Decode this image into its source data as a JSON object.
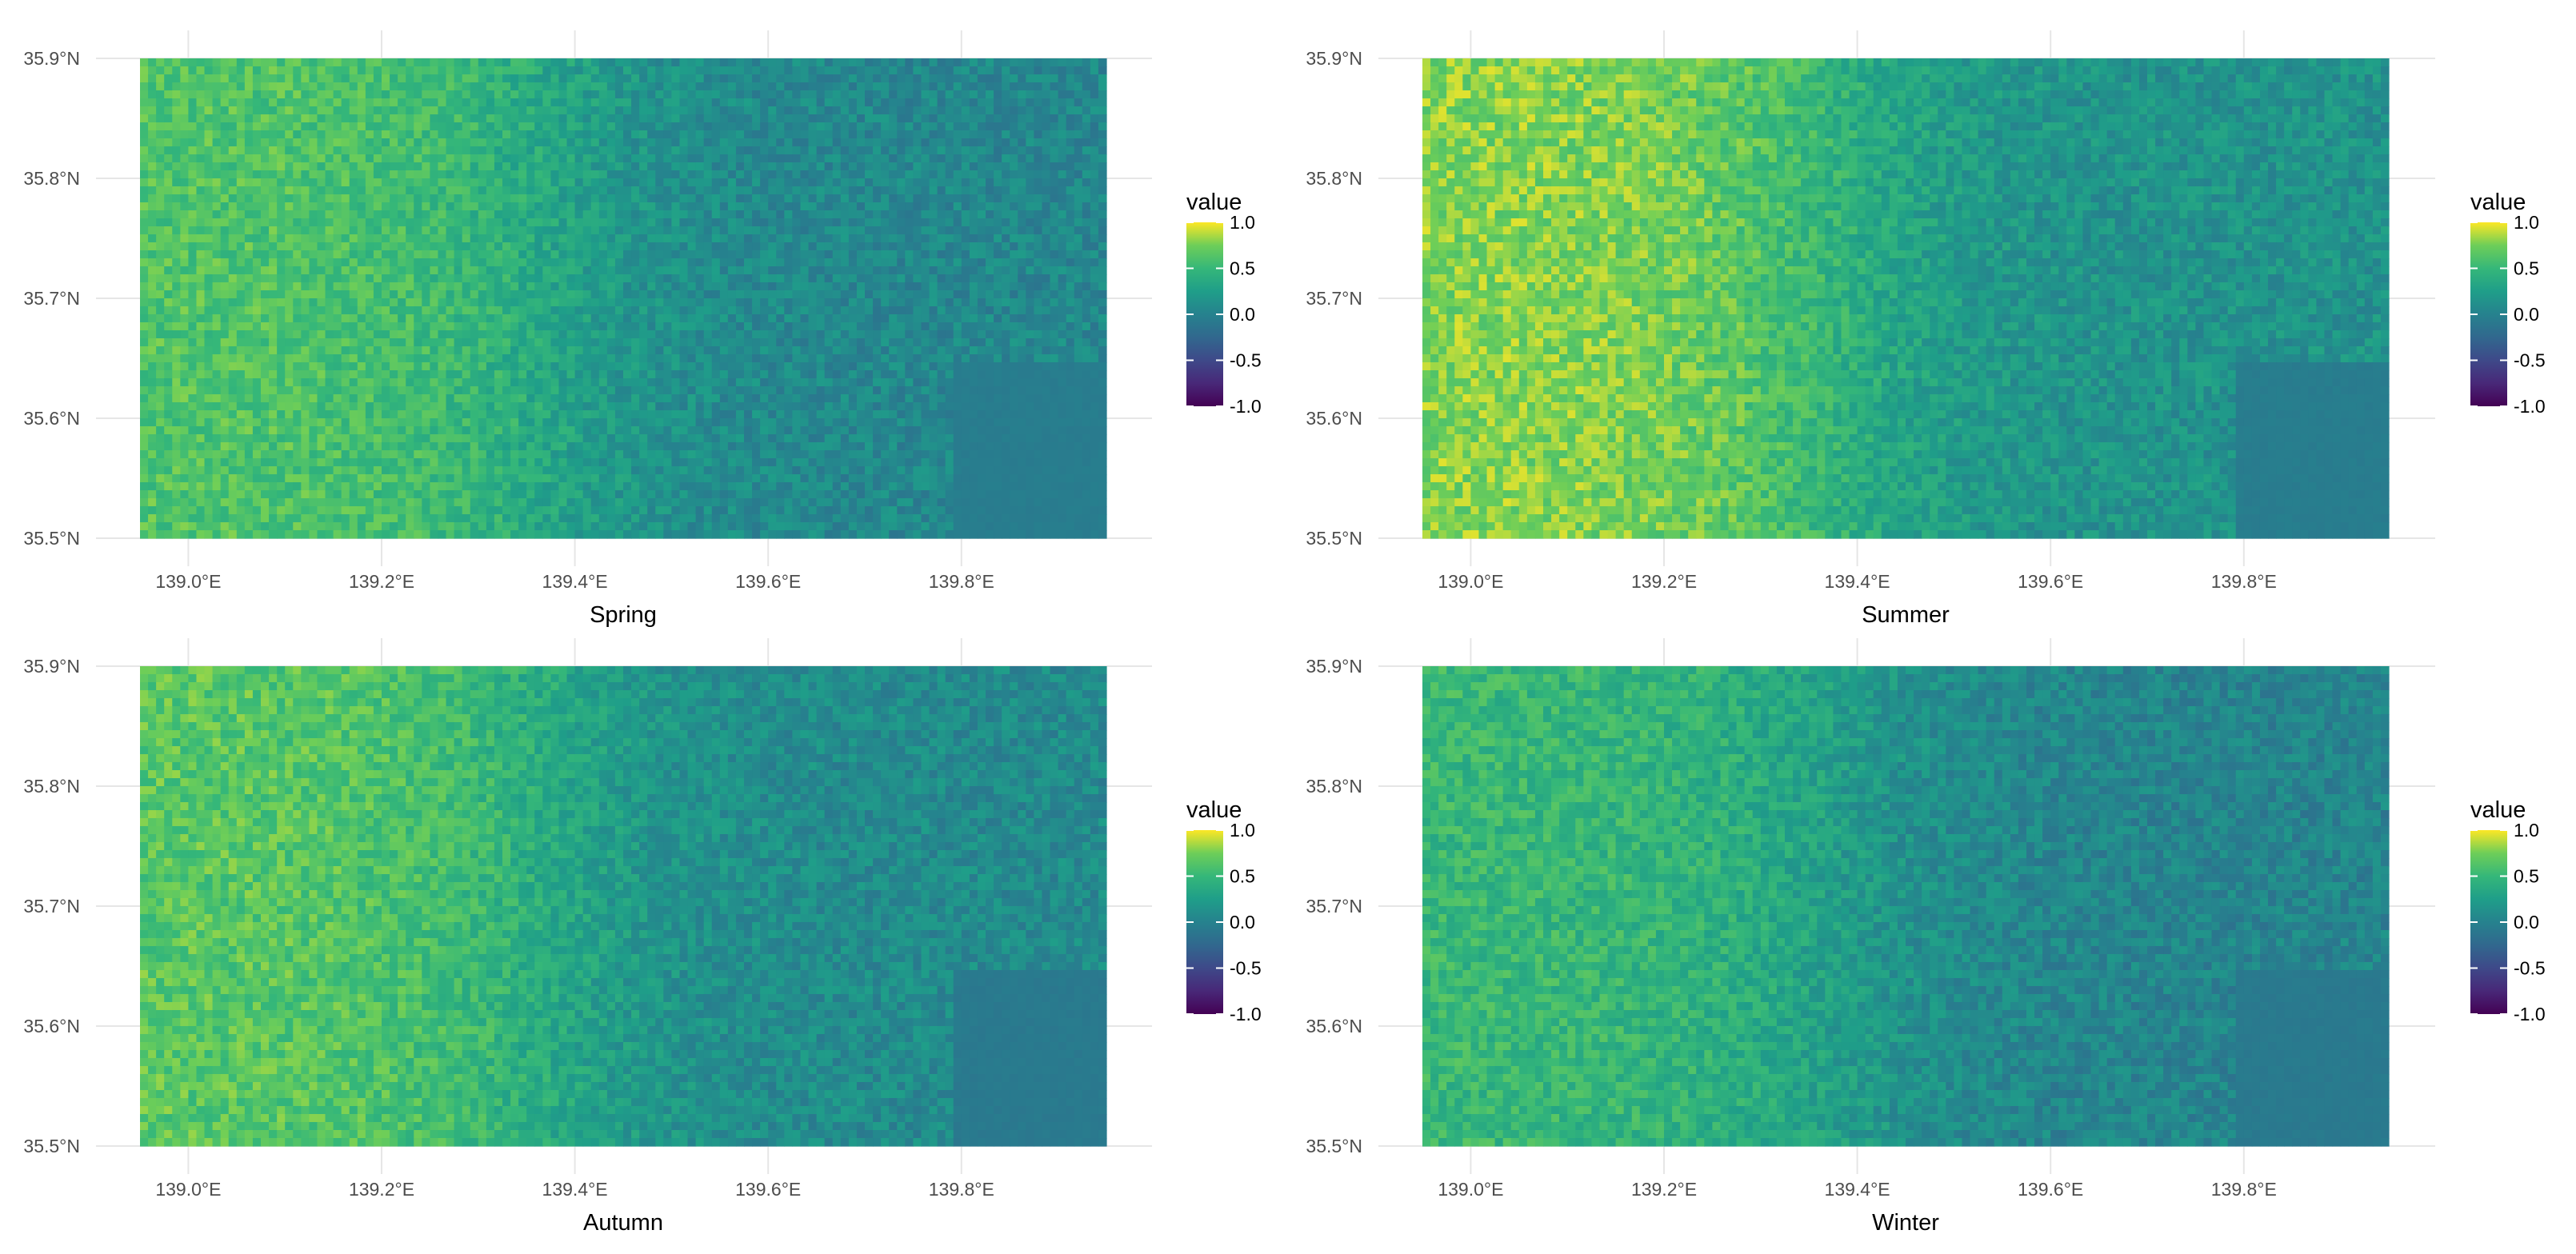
{
  "chart_data": [
    {
      "type": "heatmap",
      "title": "",
      "xlabel": "Spring",
      "ylabel": "",
      "xlim": [
        138.95,
        139.95
      ],
      "ylim": [
        35.5,
        35.9
      ],
      "x_ticks": [
        139.0,
        139.2,
        139.4,
        139.6,
        139.8
      ],
      "x_tick_labels": [
        "139.0°E",
        "139.2°E",
        "139.4°E",
        "139.6°E",
        "139.8°E"
      ],
      "y_ticks": [
        35.5,
        35.6,
        35.7,
        35.8,
        35.9
      ],
      "y_tick_labels": [
        "35.5°N",
        "35.6°N",
        "35.7°N",
        "35.8°N",
        "35.9°N"
      ],
      "grid": true,
      "colorbar": {
        "title": "value",
        "min": -1.0,
        "max": 1.0,
        "ticks": [
          -1.0,
          -0.5,
          0.0,
          0.5,
          1.0
        ],
        "tick_labels": [
          "-1.0",
          "-0.5",
          "0.0",
          "0.5",
          "1.0"
        ],
        "palette": "viridis",
        "placement": "right"
      },
      "west_mean": 0.62,
      "east_mean": 0.05,
      "water_value": -0.05
    },
    {
      "type": "heatmap",
      "title": "",
      "xlabel": "Summer",
      "ylabel": "",
      "xlim": [
        138.95,
        139.95
      ],
      "ylim": [
        35.5,
        35.9
      ],
      "x_ticks": [
        139.0,
        139.2,
        139.4,
        139.6,
        139.8
      ],
      "x_tick_labels": [
        "139.0°E",
        "139.2°E",
        "139.4°E",
        "139.6°E",
        "139.8°E"
      ],
      "y_ticks": [
        35.5,
        35.6,
        35.7,
        35.8,
        35.9
      ],
      "y_tick_labels": [
        "35.5°N",
        "35.6°N",
        "35.7°N",
        "35.8°N",
        "35.9°N"
      ],
      "grid": true,
      "colorbar": {
        "title": "value",
        "min": -1.0,
        "max": 1.0,
        "ticks": [
          -1.0,
          -0.5,
          0.0,
          0.5,
          1.0
        ],
        "tick_labels": [
          "-1.0",
          "-0.5",
          "0.0",
          "0.5",
          "1.0"
        ],
        "palette": "viridis",
        "placement": "right"
      },
      "west_mean": 0.78,
      "east_mean": 0.15,
      "water_value": -0.05
    },
    {
      "type": "heatmap",
      "title": "",
      "xlabel": "Autumn",
      "ylabel": "",
      "xlim": [
        138.95,
        139.95
      ],
      "ylim": [
        35.5,
        35.9
      ],
      "x_ticks": [
        139.0,
        139.2,
        139.4,
        139.6,
        139.8
      ],
      "x_tick_labels": [
        "139.0°E",
        "139.2°E",
        "139.4°E",
        "139.6°E",
        "139.8°E"
      ],
      "y_ticks": [
        35.5,
        35.6,
        35.7,
        35.8,
        35.9
      ],
      "y_tick_labels": [
        "35.5°N",
        "35.6°N",
        "35.7°N",
        "35.8°N",
        "35.9°N"
      ],
      "grid": true,
      "colorbar": {
        "title": "value",
        "min": -1.0,
        "max": 1.0,
        "ticks": [
          -1.0,
          -0.5,
          0.0,
          0.5,
          1.0
        ],
        "tick_labels": [
          "-1.0",
          "-0.5",
          "0.0",
          "0.5",
          "1.0"
        ],
        "palette": "viridis",
        "placement": "right"
      },
      "west_mean": 0.65,
      "east_mean": 0.08,
      "water_value": -0.08
    },
    {
      "type": "heatmap",
      "title": "",
      "xlabel": "Winter",
      "ylabel": "",
      "xlim": [
        138.95,
        139.95
      ],
      "ylim": [
        35.5,
        35.9
      ],
      "x_ticks": [
        139.0,
        139.2,
        139.4,
        139.6,
        139.8
      ],
      "x_tick_labels": [
        "139.0°E",
        "139.2°E",
        "139.4°E",
        "139.6°E",
        "139.8°E"
      ],
      "y_ticks": [
        35.5,
        35.6,
        35.7,
        35.8,
        35.9
      ],
      "y_tick_labels": [
        "35.5°N",
        "35.6°N",
        "35.7°N",
        "35.8°N",
        "35.9°N"
      ],
      "grid": true,
      "colorbar": {
        "title": "value",
        "min": -1.0,
        "max": 1.0,
        "ticks": [
          -1.0,
          -0.5,
          0.0,
          0.5,
          1.0
        ],
        "tick_labels": [
          "-1.0",
          "-0.5",
          "0.0",
          "0.5",
          "1.0"
        ],
        "palette": "viridis",
        "placement": "right"
      },
      "west_mean": 0.5,
      "east_mean": 0.02,
      "water_value": -0.08
    }
  ]
}
